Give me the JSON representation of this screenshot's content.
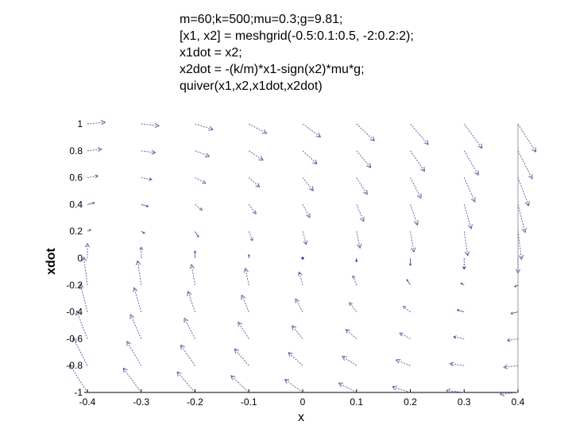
{
  "code_lines": [
    "m=60;k=500;mu=0.3;g=9.81;",
    "[x1, x2] = meshgrid(-0.5:0.1:0.5, -2:0.2:2);",
    "x1dot = x2;",
    "x2dot = -(k/m)*x1-sign(x2)*mu*g;",
    "quiver(x1,x2,x1dot,x2dot)"
  ],
  "chart_data": {
    "type": "quiver",
    "xlabel": "x",
    "ylabel": "xdot",
    "xlim": [
      -0.4,
      0.4
    ],
    "ylim": [
      -1,
      1
    ],
    "x_ticks": [
      -0.4,
      -0.3,
      -0.2,
      -0.1,
      0,
      0.1,
      0.2,
      0.3,
      0.4
    ],
    "x_tick_labels": [
      "-0.4",
      "-0.3",
      "-0.2",
      "-0.1",
      "0",
      "0.1",
      "0.2",
      "0.3",
      "0.4"
    ],
    "y_ticks": [
      1,
      0.8,
      0.6,
      0.4,
      0.2,
      0,
      -0.2,
      -0.4,
      -0.6,
      -0.8,
      -1
    ],
    "y_tick_labels": [
      "1",
      "0.8",
      "0.6",
      "0.4",
      "0.2",
      "0",
      "-0.2",
      "-0.4",
      "-0.6",
      "-0.8",
      "-1"
    ],
    "grid": false,
    "arrow_color": "#5a5a9a",
    "accent_color": "#2c2ca8",
    "axis_color": "#000000",
    "params": {
      "m": 60,
      "k": 500,
      "mu": 0.3,
      "g": 9.81
    },
    "x1_values": [
      -0.4,
      -0.3,
      -0.2,
      -0.1,
      0,
      0.1,
      0.2,
      0.3,
      0.4
    ],
    "x2_values": [
      1,
      0.8,
      0.6,
      0.4,
      0.2,
      0,
      -0.2,
      -0.4,
      -0.6,
      -0.8,
      -1
    ]
  }
}
